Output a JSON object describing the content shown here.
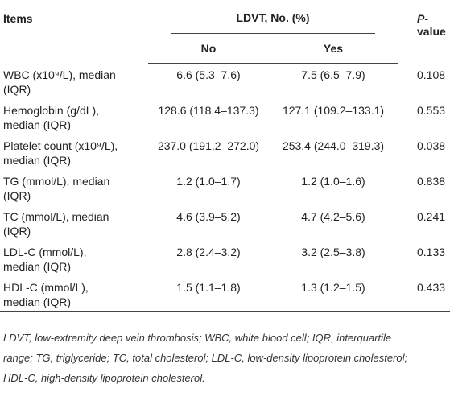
{
  "table": {
    "header": {
      "items": "Items",
      "group": "LDVT, No. (%)",
      "no": "No",
      "yes": "Yes",
      "p_italic": "P",
      "p_rest": "-value"
    },
    "rows": [
      {
        "label": [
          "WBC (x10⁹/L), median",
          "(IQR)"
        ],
        "no": "6.6 (5.3–7.6)",
        "yes": "7.5 (6.5–7.9)",
        "p": "0.108"
      },
      {
        "label": [
          "Hemoglobin (g/dL),",
          "median (IQR)"
        ],
        "no": "128.6 (118.4–137.3)",
        "yes": "127.1 (109.2–133.1)",
        "p": "0.553"
      },
      {
        "label": [
          "Platelet count (x10⁹/L),",
          "median (IQR)"
        ],
        "no": "237.0 (191.2–272.0)",
        "yes": "253.4 (244.0–319.3)",
        "p": "0.038"
      },
      {
        "label": [
          "TG (mmol/L), median",
          "(IQR)"
        ],
        "no": "1.2 (1.0–1.7)",
        "yes": "1.2 (1.0–1.6)",
        "p": "0.838"
      },
      {
        "label": [
          "TC (mmol/L), median",
          "(IQR)"
        ],
        "no": "4.6 (3.9–5.2)",
        "yes": "4.7 (4.2–5.6)",
        "p": "0.241"
      },
      {
        "label": [
          "LDL-C (mmol/L),",
          "median (IQR)"
        ],
        "no": "2.8 (2.4–3.2)",
        "yes": "3.2 (2.5–3.8)",
        "p": "0.133"
      },
      {
        "label": [
          "HDL-C (mmol/L),",
          "median (IQR)"
        ],
        "no": "1.5 (1.1–1.8)",
        "yes": "1.3 (1.2–1.5)",
        "p": "0.433"
      }
    ],
    "footnote": [
      "LDVT, low-extremity deep vein thrombosis; WBC, white blood cell; IQR, interquartile",
      "range; TG, triglyceride; TC, total cholesterol; LDL-C, low-density lipoprotein cholesterol;",
      "HDL-C, high-density lipoprotein cholesterol."
    ]
  }
}
